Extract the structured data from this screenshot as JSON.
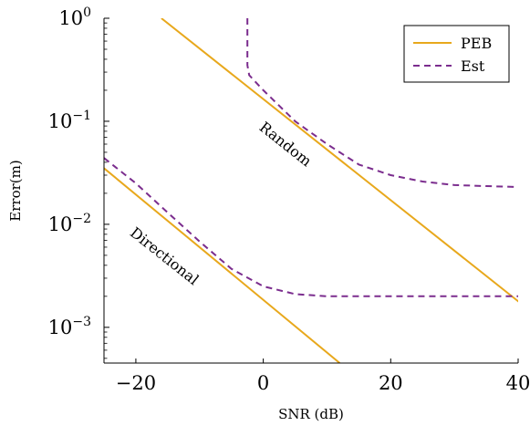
{
  "chart_data": {
    "type": "line",
    "xlabel": "SNR (dB)",
    "ylabel": "Error(m)",
    "xlim": [
      -25,
      40
    ],
    "ylim": [
      0.00045,
      1.0
    ],
    "yscale": "log",
    "grid": false,
    "legend_position": "top-right",
    "x_ticks": [
      {
        "value": -20,
        "label": "−20"
      },
      {
        "value": 0,
        "label": "0"
      },
      {
        "value": 20,
        "label": "20"
      },
      {
        "value": 40,
        "label": "40"
      }
    ],
    "y_ticks": [
      {
        "value": 0.001,
        "base": "10",
        "exp": "−3"
      },
      {
        "value": 0.01,
        "base": "10",
        "exp": "−2"
      },
      {
        "value": 0.1,
        "base": "10",
        "exp": "−1"
      },
      {
        "value": 1,
        "base": "10",
        "exp": "0"
      }
    ],
    "legend": [
      {
        "name": "PEB",
        "color": "#E8A81C",
        "dash": "solid"
      },
      {
        "name": "Est",
        "color": "#7B2D8E",
        "dash": "dashed"
      }
    ],
    "series": [
      {
        "name": "PEB",
        "group": "Random",
        "color": "#E8A81C",
        "dash": "solid",
        "x": [
          -16,
          41
        ],
        "y": [
          1.0,
          0.0016
        ]
      },
      {
        "name": "Est",
        "group": "Random",
        "color": "#7B2D8E",
        "dash": "dashed",
        "x": [
          -2.5,
          -2.5,
          -2.5,
          -2.2,
          0,
          5,
          10,
          15,
          20,
          25,
          30,
          35,
          40
        ],
        "y": [
          1.0,
          0.55,
          0.35,
          0.28,
          0.2,
          0.1,
          0.06,
          0.038,
          0.03,
          0.026,
          0.024,
          0.0235,
          0.023
        ]
      },
      {
        "name": "PEB",
        "group": "Directional",
        "color": "#E8A81C",
        "dash": "solid",
        "x": [
          -25,
          12
        ],
        "y": [
          0.035,
          0.00045
        ]
      },
      {
        "name": "Est",
        "group": "Directional",
        "color": "#7B2D8E",
        "dash": "dashed",
        "x": [
          -25,
          -20,
          -15,
          -10,
          -5,
          0,
          5,
          10,
          15,
          20,
          30,
          40
        ],
        "y": [
          0.044,
          0.025,
          0.013,
          0.0068,
          0.0037,
          0.0025,
          0.0021,
          0.002,
          0.002,
          0.002,
          0.002,
          0.002
        ]
      }
    ],
    "annotations": [
      {
        "text": "Random",
        "x": 3,
        "y": 0.055
      },
      {
        "text": "Directional",
        "x": -16,
        "y": 0.0045
      }
    ]
  }
}
